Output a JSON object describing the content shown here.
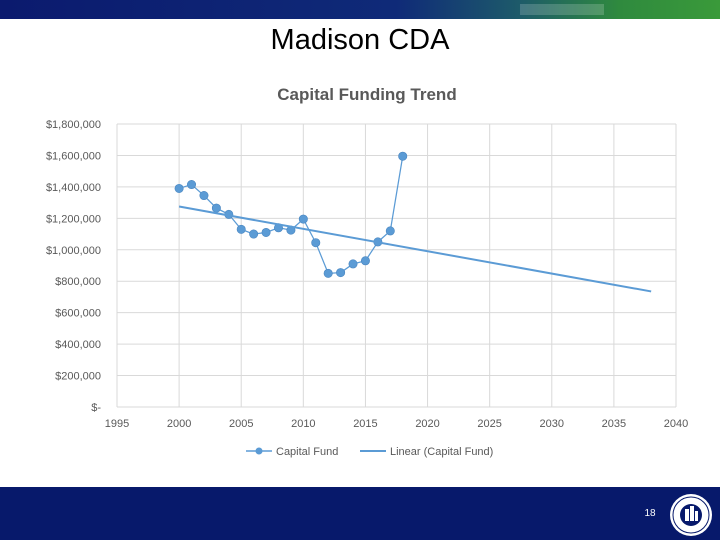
{
  "slide": {
    "title": "Madison CDA",
    "page_number": "18"
  },
  "colors": {
    "navy": "#07196b",
    "series": "#5b9bd5",
    "trendline": "#5b9bd5",
    "grid": "#d9d9d9",
    "axis_text": "#595959"
  },
  "chart_data": {
    "type": "scatter",
    "title": "Capital Funding Trend",
    "xlim": [
      1995,
      2040
    ],
    "ylim": [
      0,
      1800000
    ],
    "x_ticks": [
      1995,
      2000,
      2005,
      2010,
      2015,
      2020,
      2025,
      2030,
      2035,
      2040
    ],
    "x_tick_labels": [
      "1995",
      "2000",
      "2005",
      "2010",
      "2015",
      "2020",
      "2025",
      "2030",
      "2035",
      "2040"
    ],
    "y_ticks": [
      0,
      200000,
      400000,
      600000,
      800000,
      1000000,
      1200000,
      1400000,
      1600000,
      1800000
    ],
    "y_tick_labels": [
      "$-",
      "$200,000",
      "$400,000",
      "$600,000",
      "$800,000",
      "$1,000,000",
      "$1,200,000",
      "$1,400,000",
      "$1,600,000",
      "$1,800,000"
    ],
    "grid": true,
    "legend_position": "bottom",
    "series": [
      {
        "name": "Capital Fund",
        "style": "line-with-markers",
        "x": [
          2000,
          2001,
          2002,
          2003,
          2004,
          2005,
          2006,
          2007,
          2008,
          2009,
          2010,
          2011,
          2012,
          2013,
          2014,
          2015,
          2016,
          2017,
          2018
        ],
        "y": [
          1390000,
          1415000,
          1345000,
          1265000,
          1225000,
          1130000,
          1100000,
          1110000,
          1140000,
          1125000,
          1195000,
          1045000,
          850000,
          855000,
          910000,
          930000,
          1050000,
          1120000,
          1595000
        ]
      },
      {
        "name": "Linear (Capital Fund)",
        "style": "line",
        "x": [
          2000,
          2038
        ],
        "y": [
          1275000,
          735000
        ]
      }
    ]
  }
}
